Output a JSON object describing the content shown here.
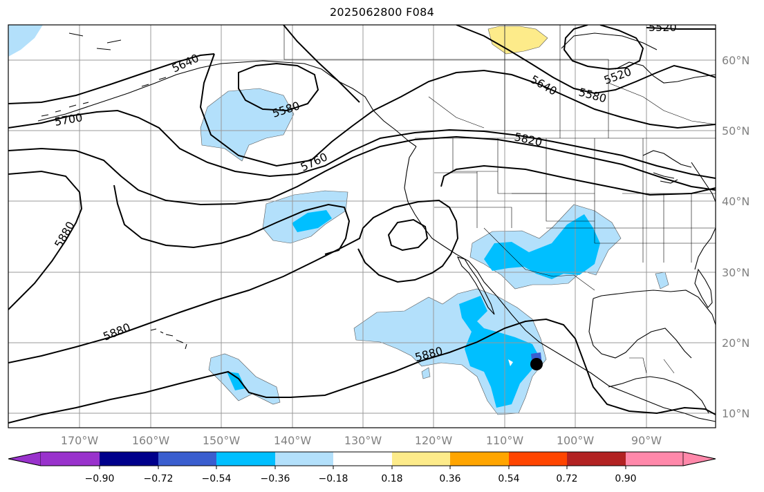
{
  "title": "2025062800 F084",
  "map": {
    "lat_labels": [
      "60°N",
      "50°N",
      "40°N",
      "30°N",
      "20°N",
      "10°N"
    ],
    "lon_labels": [
      "170°W",
      "160°W",
      "150°W",
      "140°W",
      "130°W",
      "120°W",
      "110°W",
      "100°W",
      "90°W"
    ],
    "contour_labels": [
      "5520",
      "5520",
      "5580",
      "5580",
      "5640",
      "5640",
      "5700",
      "5760",
      "5820",
      "5880",
      "5880",
      "5880"
    ],
    "marker": "black-dot-storm-center",
    "fill_colors": {
      "light_blue": "#b3e0fb",
      "blue": "#00bfff",
      "dark_blue": "#3a5ecf",
      "yellow": "#fdeb8a"
    }
  },
  "colorbar": {
    "tick_labels": [
      "−0.90",
      "−0.72",
      "−0.54",
      "−0.36",
      "−0.18",
      "0.18",
      "0.36",
      "0.54",
      "0.72",
      "0.90"
    ],
    "colors": [
      "#9932cc",
      "#00008b",
      "#3a5ecf",
      "#00bfff",
      "#b3e0fb",
      "#ffffff",
      "#fdeb8a",
      "#ffa500",
      "#ff4500",
      "#b22222",
      "#ff88aa"
    ]
  }
}
